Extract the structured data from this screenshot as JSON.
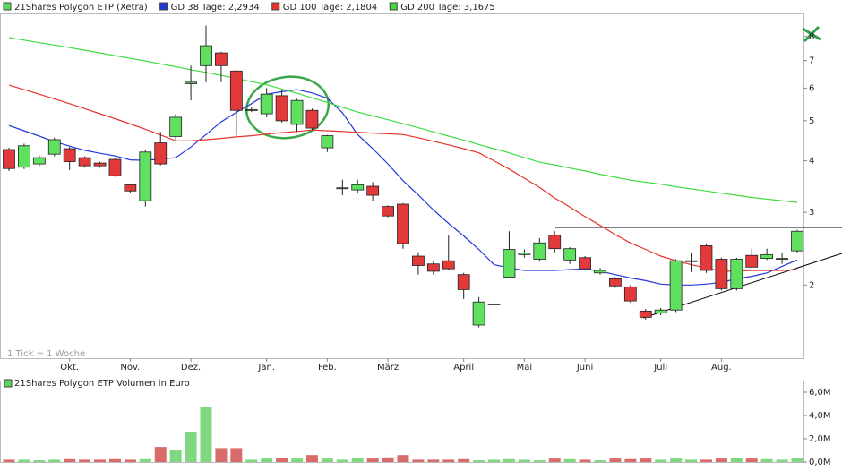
{
  "chart_data": [
    {
      "type": "candlestick",
      "name": "21Shares Polygon ETP (Xetra)",
      "color": "#5cd65c",
      "annotation": "1 Tick = 1 Woche",
      "log_scale": true,
      "up_color": "#5fe05f",
      "down_color": "#e23a3a",
      "categories": [
        null,
        null,
        null,
        null,
        "Okt.",
        null,
        null,
        null,
        "Nov.",
        null,
        null,
        null,
        "Dez.",
        null,
        null,
        null,
        null,
        "Jan.",
        null,
        null,
        null,
        "Feb.",
        null,
        null,
        null,
        "März",
        null,
        null,
        null,
        null,
        "April",
        null,
        null,
        null,
        "Mai",
        null,
        null,
        null,
        "Juni",
        null,
        null,
        null,
        null,
        "Juli",
        null,
        null,
        null,
        "Aug.",
        null,
        null,
        null,
        null,
        null
      ],
      "open": [
        4.26,
        3.86,
        3.93,
        4.15,
        4.28,
        4.07,
        3.95,
        4.03,
        3.5,
        3.2,
        4.42,
        4.58,
        6.15,
        6.8,
        7.3,
        6.6,
        5.3,
        5.2,
        5.75,
        4.9,
        5.3,
        4.3,
        3.43,
        3.4,
        3.47,
        3.1,
        3.14,
        2.35,
        2.25,
        2.29,
        2.12,
        1.6,
        1.8,
        2.09,
        2.37,
        2.31,
        2.64,
        2.3,
        2.33,
        2.14,
        2.07,
        1.98,
        1.73,
        1.71,
        1.74,
        2.28,
        2.49,
        2.31,
        1.96,
        2.36,
        2.32,
        2.32,
        2.42
      ],
      "high": [
        4.3,
        4.4,
        4.12,
        4.55,
        4.32,
        4.1,
        3.98,
        4.05,
        3.52,
        4.25,
        4.7,
        5.2,
        6.8,
        8.5,
        7.35,
        6.65,
        5.4,
        6.0,
        5.95,
        5.65,
        5.35,
        4.62,
        3.6,
        3.6,
        3.55,
        3.12,
        3.16,
        2.4,
        2.28,
        2.65,
        2.14,
        1.87,
        1.83,
        2.7,
        2.44,
        2.6,
        2.7,
        2.47,
        2.35,
        2.2,
        2.09,
        2.0,
        1.75,
        1.76,
        2.31,
        2.4,
        2.52,
        2.33,
        2.33,
        2.45,
        2.45,
        2.4,
        2.72
      ],
      "low": [
        3.78,
        3.82,
        3.88,
        4.1,
        3.8,
        3.85,
        3.85,
        3.66,
        3.35,
        3.1,
        3.9,
        4.5,
        5.6,
        6.2,
        6.2,
        4.6,
        5.25,
        5.1,
        4.95,
        4.7,
        4.75,
        4.2,
        3.3,
        3.35,
        3.2,
        2.92,
        2.45,
        2.12,
        2.12,
        2.17,
        1.85,
        1.58,
        1.77,
        2.08,
        2.33,
        2.28,
        2.4,
        2.25,
        2.17,
        2.12,
        1.97,
        1.81,
        1.65,
        1.69,
        1.72,
        2.15,
        2.14,
        1.94,
        1.94,
        2.2,
        2.3,
        2.25,
        2.4
      ],
      "close": [
        3.83,
        4.35,
        4.07,
        4.5,
        3.98,
        3.89,
        3.89,
        3.68,
        3.38,
        4.2,
        3.93,
        5.1,
        6.2,
        7.6,
        6.8,
        5.3,
        5.32,
        5.8,
        5.0,
        5.6,
        4.8,
        4.6,
        3.44,
        3.5,
        3.3,
        2.94,
        2.52,
        2.23,
        2.16,
        2.19,
        1.95,
        1.82,
        1.8,
        2.44,
        2.39,
        2.53,
        2.45,
        2.45,
        2.19,
        2.17,
        1.99,
        1.83,
        1.67,
        1.74,
        2.29,
        2.29,
        2.17,
        1.96,
        2.31,
        2.21,
        2.37,
        2.32,
        2.7
      ],
      "series": [
        {
          "name": "GD 38 Tage: 2,2934",
          "color": "#2238d8",
          "values": [
            4.87,
            4.73,
            4.59,
            4.45,
            4.34,
            4.24,
            4.17,
            4.11,
            4.02,
            4.01,
            4.04,
            4.07,
            4.32,
            4.63,
            4.97,
            5.24,
            5.5,
            5.8,
            5.88,
            5.95,
            5.84,
            5.67,
            5.23,
            4.63,
            4.28,
            3.93,
            3.58,
            3.31,
            3.04,
            2.82,
            2.63,
            2.44,
            2.24,
            2.2,
            2.17,
            2.17,
            2.17,
            2.18,
            2.19,
            2.16,
            2.12,
            2.08,
            2.05,
            2.01,
            2.0,
            2.0,
            2.01,
            2.03,
            2.07,
            2.1,
            2.14,
            2.22,
            2.3
          ]
        },
        {
          "name": "GD 100 Tage: 2,1804",
          "color": "#e8332a",
          "values": [
            6.1,
            5.95,
            5.8,
            5.65,
            5.5,
            5.35,
            5.2,
            5.06,
            4.91,
            4.77,
            4.62,
            4.47,
            4.47,
            4.5,
            4.53,
            4.57,
            4.6,
            4.64,
            4.68,
            4.71,
            4.75,
            4.73,
            4.71,
            4.69,
            4.67,
            4.65,
            4.63,
            4.55,
            4.46,
            4.37,
            4.28,
            4.18,
            4.0,
            3.82,
            3.63,
            3.45,
            3.25,
            3.09,
            2.93,
            2.79,
            2.65,
            2.53,
            2.44,
            2.35,
            2.29,
            2.24,
            2.2,
            2.16,
            2.16,
            2.17,
            2.17,
            2.17,
            2.18
          ]
        },
        {
          "name": "GD 200 Tage: 3,1675",
          "color": "#3fdc3f",
          "values": [
            7.95,
            7.84,
            7.73,
            7.63,
            7.52,
            7.41,
            7.3,
            7.19,
            7.08,
            6.98,
            6.87,
            6.76,
            6.65,
            6.55,
            6.44,
            6.33,
            6.22,
            6.11,
            5.97,
            5.83,
            5.68,
            5.54,
            5.39,
            5.25,
            5.14,
            5.03,
            4.92,
            4.81,
            4.7,
            4.59,
            4.49,
            4.38,
            4.28,
            4.18,
            4.07,
            3.97,
            3.91,
            3.84,
            3.78,
            3.71,
            3.65,
            3.59,
            3.55,
            3.51,
            3.46,
            3.42,
            3.38,
            3.34,
            3.3,
            3.26,
            3.23,
            3.2,
            3.17
          ]
        }
      ],
      "ylim": [
        1.33,
        9.1
      ],
      "yticks": [
        2,
        3,
        4,
        5,
        6,
        7,
        8
      ]
    },
    {
      "type": "bar",
      "title": "21Shares Polygon ETP Volumen in Euro",
      "color": "#5cd65c",
      "up_color": "#7fd87f",
      "down_color": "#d96b6b",
      "values": [
        0.2,
        0.2,
        0.15,
        0.2,
        0.25,
        0.2,
        0.2,
        0.25,
        0.2,
        0.25,
        1.3,
        1.0,
        2.6,
        4.7,
        1.2,
        1.2,
        0.2,
        0.3,
        0.35,
        0.3,
        0.6,
        0.3,
        0.2,
        0.35,
        0.3,
        0.4,
        0.6,
        0.2,
        0.2,
        0.2,
        0.25,
        0.15,
        0.2,
        0.25,
        0.2,
        0.15,
        0.3,
        0.25,
        0.2,
        0.15,
        0.3,
        0.25,
        0.3,
        0.2,
        0.3,
        0.2,
        0.2,
        0.3,
        0.35,
        0.3,
        0.25,
        0.2,
        0.35
      ],
      "ylim": [
        0,
        7
      ],
      "yticks": [
        {
          "value": 0,
          "label": "0,0M"
        },
        {
          "value": 2,
          "label": "2,0M"
        },
        {
          "value": 4,
          "label": "4,0M"
        },
        {
          "value": 6,
          "label": "6,0M"
        }
      ]
    }
  ]
}
